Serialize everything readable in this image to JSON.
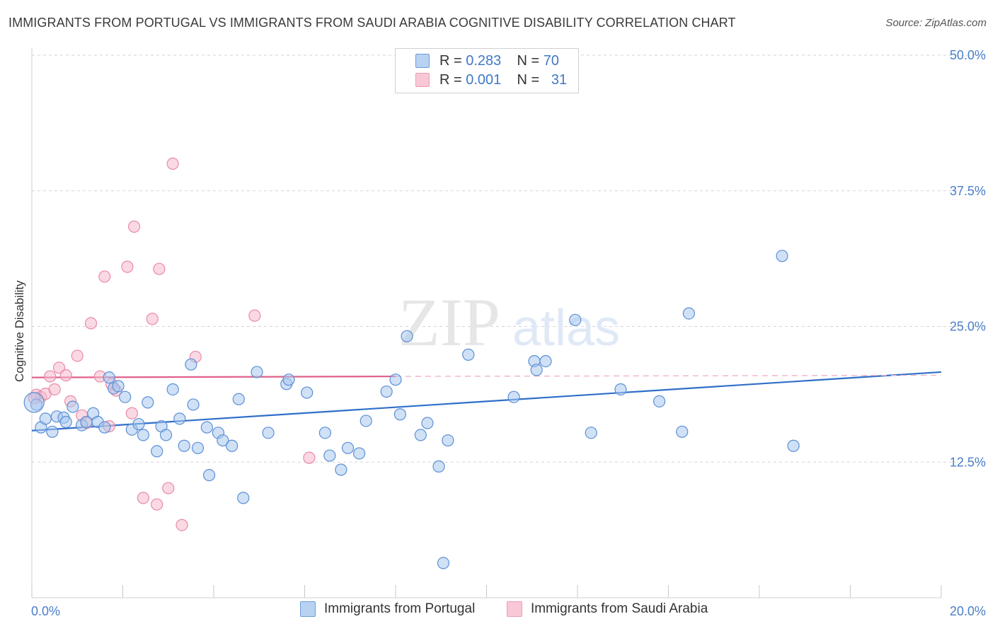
{
  "title": "IMMIGRANTS FROM PORTUGAL VS IMMIGRANTS FROM SAUDI ARABIA COGNITIVE DISABILITY CORRELATION CHART",
  "source": "Source: ZipAtlas.com",
  "watermark": {
    "zip": "ZIP",
    "atlas": "atlas"
  },
  "legend": {
    "rows": [
      {
        "r_label": "R =",
        "r_value": "0.283",
        "n_label": "N =",
        "n_value": "70"
      },
      {
        "r_label": "R =",
        "r_value": "0.001",
        "n_label": "N =",
        "n_value": "31"
      }
    ]
  },
  "colors": {
    "portugal_fill": "#a9c8ef",
    "portugal_stroke": "#5b8fd6",
    "portugal_line": "#2f6fc9",
    "saudi_fill": "#f6b9cc",
    "saudi_stroke": "#e98aa8",
    "saudi_line": "#e0608a",
    "axis_text": "#4a7ec9",
    "grid": "#d5d5d5"
  },
  "chart_data": {
    "type": "scatter",
    "title": "IMMIGRANTS FROM PORTUGAL VS IMMIGRANTS FROM SAUDI ARABIA COGNITIVE DISABILITY CORRELATION CHART",
    "xlabel": "",
    "ylabel": "Cognitive Disability",
    "xlim": [
      0,
      20
    ],
    "ylim": [
      0,
      50
    ],
    "x_tick_labels": [
      "0.0%",
      "20.0%"
    ],
    "y_tick_labels": [
      "12.5%",
      "25.0%",
      "37.5%",
      "50.0%"
    ],
    "y_ticks": [
      12.5,
      25.0,
      37.5,
      50.0
    ],
    "grid": true,
    "legend_position": "top-center",
    "series": [
      {
        "name": "Immigrants from Portugal",
        "r": 0.283,
        "n": 70,
        "trend": {
          "x": [
            0,
            20
          ],
          "y": [
            15.4,
            20.8
          ]
        },
        "points": [
          [
            0.1,
            17.8
          ],
          [
            0.2,
            15.7
          ],
          [
            0.3,
            16.5
          ],
          [
            0.45,
            15.3
          ],
          [
            0.55,
            16.7
          ],
          [
            0.7,
            16.6
          ],
          [
            0.75,
            16.2
          ],
          [
            0.9,
            17.6
          ],
          [
            1.1,
            15.9
          ],
          [
            1.2,
            16.2
          ],
          [
            1.35,
            17.0
          ],
          [
            1.45,
            16.2
          ],
          [
            1.6,
            15.7
          ],
          [
            1.7,
            20.3
          ],
          [
            1.8,
            19.3
          ],
          [
            1.9,
            19.5
          ],
          [
            2.05,
            18.5
          ],
          [
            2.2,
            15.5
          ],
          [
            2.35,
            16.0
          ],
          [
            2.45,
            15.0
          ],
          [
            2.55,
            18.0
          ],
          [
            2.75,
            13.5
          ],
          [
            2.85,
            15.8
          ],
          [
            2.95,
            15.0
          ],
          [
            3.1,
            19.2
          ],
          [
            3.25,
            16.5
          ],
          [
            3.35,
            14.0
          ],
          [
            3.5,
            21.5
          ],
          [
            3.55,
            17.8
          ],
          [
            3.65,
            13.8
          ],
          [
            3.85,
            15.7
          ],
          [
            3.9,
            11.3
          ],
          [
            4.1,
            15.2
          ],
          [
            4.2,
            14.5
          ],
          [
            4.4,
            14.0
          ],
          [
            4.55,
            18.3
          ],
          [
            4.65,
            9.2
          ],
          [
            4.95,
            20.8
          ],
          [
            5.2,
            15.2
          ],
          [
            5.6,
            19.7
          ],
          [
            5.65,
            20.1
          ],
          [
            6.05,
            18.9
          ],
          [
            6.45,
            15.2
          ],
          [
            6.55,
            13.1
          ],
          [
            6.8,
            11.8
          ],
          [
            6.95,
            13.8
          ],
          [
            7.2,
            13.3
          ],
          [
            7.35,
            16.3
          ],
          [
            7.8,
            19.0
          ],
          [
            8.0,
            20.1
          ],
          [
            8.1,
            16.9
          ],
          [
            8.25,
            24.1
          ],
          [
            8.55,
            15.0
          ],
          [
            8.7,
            16.1
          ],
          [
            8.95,
            12.1
          ],
          [
            9.05,
            3.2
          ],
          [
            9.15,
            14.5
          ],
          [
            9.6,
            22.4
          ],
          [
            10.6,
            18.5
          ],
          [
            11.05,
            21.8
          ],
          [
            11.1,
            21.0
          ],
          [
            11.3,
            21.8
          ],
          [
            11.95,
            25.6
          ],
          [
            12.3,
            15.2
          ],
          [
            12.95,
            19.2
          ],
          [
            13.8,
            18.1
          ],
          [
            14.3,
            15.3
          ],
          [
            14.45,
            26.2
          ],
          [
            16.5,
            31.5
          ],
          [
            16.75,
            14.0
          ]
        ]
      },
      {
        "name": "Immigrants from Saudi Arabia",
        "r": 0.001,
        "n": 31,
        "trend": {
          "x": [
            0,
            8
          ],
          "y": [
            20.3,
            20.4
          ]
        },
        "trend_dashed": {
          "x": [
            8,
            20
          ],
          "y": [
            20.4,
            20.5
          ]
        },
        "points": [
          [
            0.1,
            18.7
          ],
          [
            0.2,
            18.5
          ],
          [
            0.3,
            18.8
          ],
          [
            0.4,
            20.4
          ],
          [
            0.5,
            19.2
          ],
          [
            0.6,
            21.2
          ],
          [
            0.75,
            20.5
          ],
          [
            0.85,
            18.1
          ],
          [
            1.0,
            22.3
          ],
          [
            1.1,
            16.8
          ],
          [
            1.2,
            16.1
          ],
          [
            1.3,
            25.3
          ],
          [
            1.5,
            20.4
          ],
          [
            1.6,
            29.6
          ],
          [
            1.7,
            15.8
          ],
          [
            1.75,
            19.7
          ],
          [
            1.85,
            19.1
          ],
          [
            2.1,
            30.5
          ],
          [
            2.2,
            17.0
          ],
          [
            2.25,
            34.2
          ],
          [
            2.45,
            9.2
          ],
          [
            2.65,
            25.7
          ],
          [
            2.75,
            8.6
          ],
          [
            2.8,
            30.3
          ],
          [
            3.0,
            10.1
          ],
          [
            3.1,
            40.0
          ],
          [
            3.3,
            6.7
          ],
          [
            3.6,
            22.2
          ],
          [
            4.9,
            26.0
          ],
          [
            6.1,
            12.9
          ],
          [
            0.05,
            18.4
          ]
        ]
      }
    ]
  },
  "bottom_legend": [
    "Immigrants from Portugal",
    "Immigrants from Saudi Arabia"
  ]
}
